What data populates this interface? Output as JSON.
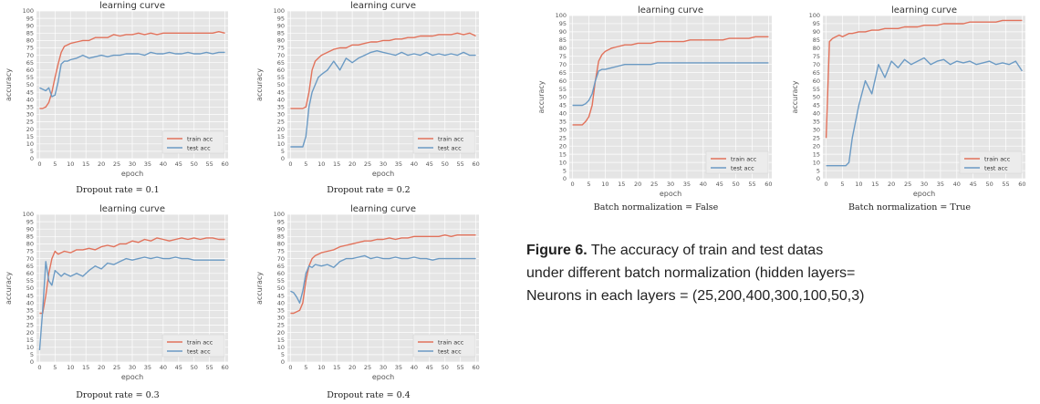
{
  "colors": {
    "train": "#e2725b",
    "test": "#6b9ac4",
    "plot_bg": "#e5e5e5",
    "grid": "#ffffff"
  },
  "figure_caption": {
    "label": "Figure 6.",
    "line1": " The accuracy of train and test datas",
    "line2": "under different batch normalization (hidden layers=",
    "line3": "Neurons in each layers = (25,200,400,300,100,50,3)"
  },
  "chart_data": [
    {
      "type": "line",
      "title": "learning curve",
      "xlabel": "epoch",
      "ylabel": "accuracy",
      "caption": "Dropout rate = 0.1",
      "xlim": [
        -1,
        61
      ],
      "ylim": [
        0,
        100
      ],
      "xticks": [
        0,
        5,
        10,
        15,
        20,
        25,
        30,
        35,
        40,
        45,
        50,
        55,
        60
      ],
      "yticks": [
        0,
        5,
        10,
        15,
        20,
        25,
        30,
        35,
        40,
        45,
        50,
        55,
        60,
        65,
        70,
        75,
        80,
        85,
        90,
        95,
        100
      ],
      "legend_position": "bottom-right",
      "series": [
        {
          "name": "train acc",
          "x": [
            0,
            1,
            2,
            3,
            4,
            5,
            6,
            7,
            8,
            9,
            10,
            12,
            14,
            16,
            18,
            20,
            22,
            24,
            26,
            28,
            30,
            32,
            34,
            36,
            38,
            40,
            42,
            44,
            46,
            48,
            50,
            52,
            54,
            56,
            58,
            60
          ],
          "y": [
            34,
            34,
            35,
            38,
            45,
            55,
            64,
            72,
            76,
            77,
            78,
            79,
            80,
            80,
            82,
            82,
            82,
            84,
            83,
            84,
            84,
            85,
            84,
            85,
            84,
            85,
            85,
            85,
            85,
            85,
            85,
            85,
            85,
            85,
            86,
            85
          ]
        },
        {
          "name": "test acc",
          "x": [
            0,
            1,
            2,
            3,
            4,
            5,
            6,
            7,
            8,
            9,
            10,
            12,
            14,
            16,
            18,
            20,
            22,
            24,
            26,
            28,
            30,
            32,
            34,
            36,
            38,
            40,
            42,
            44,
            46,
            48,
            50,
            52,
            54,
            56,
            58,
            60
          ],
          "y": [
            48,
            47,
            46,
            48,
            42,
            43,
            52,
            64,
            66,
            66,
            67,
            68,
            70,
            68,
            69,
            70,
            69,
            70,
            70,
            71,
            71,
            71,
            70,
            72,
            71,
            71,
            72,
            71,
            71,
            72,
            71,
            71,
            72,
            71,
            72,
            72
          ]
        }
      ]
    },
    {
      "type": "line",
      "title": "learning curve",
      "xlabel": "epoch",
      "ylabel": "accuracy",
      "caption": "Dropout rate = 0.2",
      "xlim": [
        -1,
        61
      ],
      "ylim": [
        0,
        100
      ],
      "xticks": [
        0,
        5,
        10,
        15,
        20,
        25,
        30,
        35,
        40,
        45,
        50,
        55,
        60
      ],
      "yticks": [
        0,
        5,
        10,
        15,
        20,
        25,
        30,
        35,
        40,
        45,
        50,
        55,
        60,
        65,
        70,
        75,
        80,
        85,
        90,
        95,
        100
      ],
      "legend_position": "bottom-right",
      "series": [
        {
          "name": "train acc",
          "x": [
            0,
            1,
            2,
            3,
            4,
            5,
            6,
            7,
            8,
            9,
            10,
            12,
            14,
            16,
            18,
            20,
            22,
            24,
            26,
            28,
            30,
            32,
            34,
            36,
            38,
            40,
            42,
            44,
            46,
            48,
            50,
            52,
            54,
            56,
            58,
            60
          ],
          "y": [
            34,
            34,
            34,
            34,
            34,
            35,
            45,
            60,
            66,
            68,
            70,
            72,
            74,
            75,
            75,
            77,
            77,
            78,
            79,
            79,
            80,
            80,
            81,
            81,
            82,
            82,
            83,
            83,
            83,
            84,
            84,
            84,
            85,
            84,
            85,
            83
          ]
        },
        {
          "name": "test acc",
          "x": [
            0,
            1,
            2,
            3,
            4,
            5,
            6,
            7,
            8,
            9,
            10,
            12,
            14,
            16,
            18,
            20,
            22,
            24,
            26,
            28,
            30,
            32,
            34,
            36,
            38,
            40,
            42,
            44,
            46,
            48,
            50,
            52,
            54,
            56,
            58,
            60
          ],
          "y": [
            8,
            8,
            8,
            8,
            8,
            15,
            35,
            45,
            50,
            55,
            57,
            60,
            66,
            60,
            68,
            65,
            68,
            70,
            72,
            73,
            72,
            71,
            70,
            72,
            70,
            71,
            70,
            72,
            70,
            71,
            70,
            71,
            70,
            72,
            70,
            70
          ]
        }
      ]
    },
    {
      "type": "line",
      "title": "learning curve",
      "xlabel": "epoch",
      "ylabel": "accuracy",
      "caption": "Dropout rate = 0.3",
      "xlim": [
        -1,
        61
      ],
      "ylim": [
        0,
        100
      ],
      "xticks": [
        0,
        5,
        10,
        15,
        20,
        25,
        30,
        35,
        40,
        45,
        50,
        55,
        60
      ],
      "yticks": [
        0,
        5,
        10,
        15,
        20,
        25,
        30,
        35,
        40,
        45,
        50,
        55,
        60,
        65,
        70,
        75,
        80,
        85,
        90,
        95,
        100
      ],
      "legend_position": "bottom-right",
      "series": [
        {
          "name": "train acc",
          "x": [
            0,
            1,
            2,
            3,
            4,
            5,
            6,
            7,
            8,
            10,
            12,
            14,
            16,
            18,
            20,
            22,
            24,
            26,
            28,
            30,
            32,
            34,
            36,
            38,
            40,
            42,
            44,
            46,
            48,
            50,
            52,
            54,
            56,
            58,
            60
          ],
          "y": [
            33,
            33,
            45,
            60,
            70,
            75,
            73,
            74,
            75,
            74,
            76,
            76,
            77,
            76,
            78,
            79,
            78,
            80,
            80,
            82,
            81,
            83,
            82,
            84,
            83,
            82,
            83,
            84,
            83,
            84,
            83,
            84,
            84,
            83,
            83
          ]
        },
        {
          "name": "test acc",
          "x": [
            0,
            1,
            2,
            3,
            4,
            5,
            6,
            7,
            8,
            10,
            12,
            14,
            16,
            18,
            20,
            22,
            24,
            26,
            28,
            30,
            32,
            34,
            36,
            38,
            40,
            42,
            44,
            46,
            48,
            50,
            52,
            54,
            56,
            58,
            60
          ],
          "y": [
            8,
            35,
            68,
            55,
            52,
            62,
            60,
            58,
            60,
            58,
            60,
            58,
            62,
            65,
            63,
            67,
            66,
            68,
            70,
            69,
            70,
            71,
            70,
            71,
            70,
            70,
            71,
            70,
            70,
            69,
            69,
            69,
            69,
            69,
            69
          ]
        }
      ]
    },
    {
      "type": "line",
      "title": "learning curve",
      "xlabel": "epoch",
      "ylabel": "accuracy",
      "caption": "Dropout rate = 0.4",
      "xlim": [
        -1,
        61
      ],
      "ylim": [
        0,
        100
      ],
      "xticks": [
        0,
        5,
        10,
        15,
        20,
        25,
        30,
        35,
        40,
        45,
        50,
        55,
        60
      ],
      "yticks": [
        0,
        5,
        10,
        15,
        20,
        25,
        30,
        35,
        40,
        45,
        50,
        55,
        60,
        65,
        70,
        75,
        80,
        85,
        90,
        95,
        100
      ],
      "legend_position": "bottom-right",
      "series": [
        {
          "name": "train acc",
          "x": [
            0,
            1,
            2,
            3,
            4,
            5,
            6,
            7,
            8,
            10,
            12,
            14,
            16,
            18,
            20,
            22,
            24,
            26,
            28,
            30,
            32,
            34,
            36,
            38,
            40,
            42,
            44,
            46,
            48,
            50,
            52,
            54,
            56,
            58,
            60
          ],
          "y": [
            33,
            33,
            34,
            35,
            40,
            55,
            65,
            70,
            72,
            74,
            75,
            76,
            78,
            79,
            80,
            81,
            82,
            82,
            83,
            83,
            84,
            83,
            84,
            84,
            85,
            85,
            85,
            85,
            85,
            86,
            85,
            86,
            86,
            86,
            86
          ]
        },
        {
          "name": "test acc",
          "x": [
            0,
            1,
            2,
            3,
            4,
            5,
            6,
            7,
            8,
            10,
            12,
            14,
            16,
            18,
            20,
            22,
            24,
            26,
            28,
            30,
            32,
            34,
            36,
            38,
            40,
            42,
            44,
            46,
            48,
            50,
            52,
            54,
            56,
            58,
            60
          ],
          "y": [
            48,
            47,
            44,
            40,
            48,
            60,
            65,
            64,
            66,
            65,
            66,
            64,
            68,
            70,
            70,
            71,
            72,
            70,
            71,
            70,
            70,
            71,
            70,
            70,
            71,
            70,
            70,
            69,
            70,
            70,
            70,
            70,
            70,
            70,
            70
          ]
        }
      ]
    },
    {
      "type": "line",
      "title": "learning curve",
      "xlabel": "epoch",
      "ylabel": "accuracy",
      "caption": "Batch normalization = False",
      "xlim": [
        -1,
        61
      ],
      "ylim": [
        0,
        100
      ],
      "xticks": [
        0,
        5,
        10,
        15,
        20,
        25,
        30,
        35,
        40,
        45,
        50,
        55,
        60
      ],
      "yticks": [
        0,
        5,
        10,
        15,
        20,
        25,
        30,
        35,
        40,
        45,
        50,
        55,
        60,
        65,
        70,
        75,
        80,
        85,
        90,
        95,
        100
      ],
      "legend_position": "bottom-right",
      "series": [
        {
          "name": "train acc",
          "x": [
            0,
            1,
            2,
            3,
            4,
            5,
            6,
            7,
            8,
            9,
            10,
            12,
            14,
            16,
            18,
            20,
            22,
            24,
            26,
            28,
            30,
            32,
            34,
            36,
            38,
            40,
            42,
            44,
            46,
            48,
            50,
            52,
            54,
            56,
            58,
            60
          ],
          "y": [
            33,
            33,
            33,
            33,
            35,
            38,
            45,
            60,
            72,
            76,
            78,
            80,
            81,
            82,
            82,
            83,
            83,
            83,
            84,
            84,
            84,
            84,
            84,
            85,
            85,
            85,
            85,
            85,
            85,
            86,
            86,
            86,
            86,
            87,
            87,
            87
          ]
        },
        {
          "name": "test acc",
          "x": [
            0,
            1,
            2,
            3,
            4,
            5,
            6,
            7,
            8,
            9,
            10,
            12,
            14,
            16,
            18,
            20,
            22,
            24,
            26,
            28,
            30,
            32,
            34,
            36,
            38,
            40,
            42,
            44,
            46,
            48,
            50,
            52,
            54,
            56,
            58,
            60
          ],
          "y": [
            45,
            45,
            45,
            45,
            46,
            48,
            52,
            60,
            66,
            67,
            67,
            68,
            69,
            70,
            70,
            70,
            70,
            70,
            71,
            71,
            71,
            71,
            71,
            71,
            71,
            71,
            71,
            71,
            71,
            71,
            71,
            71,
            71,
            71,
            71,
            71
          ]
        }
      ]
    },
    {
      "type": "line",
      "title": "learning curve",
      "xlabel": "epoch",
      "ylabel": "accuracy",
      "caption": "Batch normalization = True",
      "xlim": [
        -1,
        61
      ],
      "ylim": [
        0,
        100
      ],
      "xticks": [
        0,
        5,
        10,
        15,
        20,
        25,
        30,
        35,
        40,
        45,
        50,
        55,
        60
      ],
      "yticks": [
        0,
        5,
        10,
        15,
        20,
        25,
        30,
        35,
        40,
        45,
        50,
        55,
        60,
        65,
        70,
        75,
        80,
        85,
        90,
        95,
        100
      ],
      "legend_position": "bottom-right",
      "series": [
        {
          "name": "train acc",
          "x": [
            0,
            1,
            2,
            3,
            4,
            5,
            6,
            7,
            8,
            10,
            12,
            14,
            16,
            18,
            20,
            22,
            24,
            26,
            28,
            30,
            32,
            34,
            36,
            38,
            40,
            42,
            44,
            46,
            48,
            50,
            52,
            54,
            56,
            58,
            60
          ],
          "y": [
            25,
            84,
            86,
            87,
            88,
            87,
            88,
            89,
            89,
            90,
            90,
            91,
            91,
            92,
            92,
            92,
            93,
            93,
            93,
            94,
            94,
            94,
            95,
            95,
            95,
            95,
            96,
            96,
            96,
            96,
            96,
            97,
            97,
            97,
            97
          ]
        },
        {
          "name": "test acc",
          "x": [
            0,
            1,
            2,
            3,
            4,
            5,
            6,
            7,
            8,
            10,
            12,
            14,
            16,
            18,
            20,
            22,
            24,
            26,
            28,
            30,
            32,
            34,
            36,
            38,
            40,
            42,
            44,
            46,
            48,
            50,
            52,
            54,
            56,
            58,
            60
          ],
          "y": [
            8,
            8,
            8,
            8,
            8,
            8,
            8,
            10,
            25,
            45,
            60,
            52,
            70,
            62,
            72,
            68,
            73,
            70,
            72,
            74,
            70,
            72,
            73,
            70,
            72,
            71,
            72,
            70,
            71,
            72,
            70,
            71,
            70,
            72,
            66
          ]
        }
      ]
    }
  ]
}
